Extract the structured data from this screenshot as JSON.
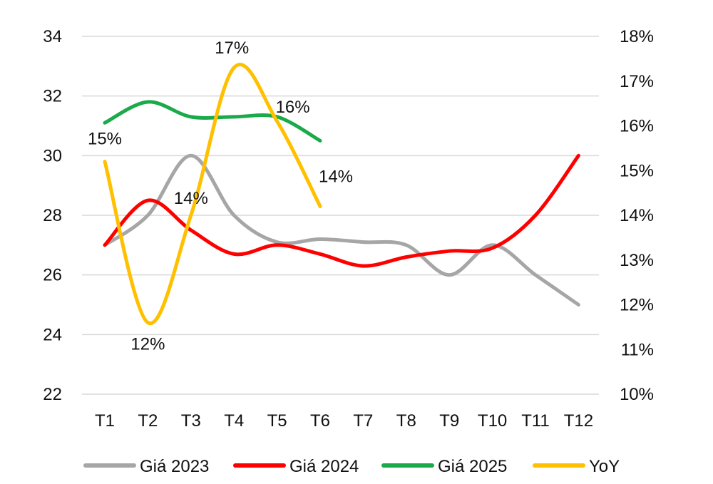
{
  "chart_data": {
    "type": "line",
    "categories": [
      "T1",
      "T2",
      "T3",
      "T4",
      "T5",
      "T6",
      "T7",
      "T8",
      "T9",
      "T10",
      "T11",
      "T12"
    ],
    "y_left": {
      "min": 22,
      "max": 34,
      "step": 2,
      "ticks": [
        "22",
        "24",
        "26",
        "28",
        "30",
        "32",
        "34"
      ]
    },
    "y_right": {
      "min": 10,
      "max": 18,
      "step": 1,
      "ticks": [
        "10%",
        "11%",
        "12%",
        "13%",
        "14%",
        "15%",
        "16%",
        "17%",
        "18%"
      ]
    },
    "grid": true,
    "legend_position": "bottom",
    "series": [
      {
        "name": "Giá 2023",
        "axis": "left",
        "color": "#a6a6a6",
        "values": [
          27.0,
          28.0,
          30.0,
          28.0,
          27.1,
          27.2,
          27.1,
          27.0,
          26.0,
          27.0,
          26.0,
          25.0
        ]
      },
      {
        "name": "Giá 2024",
        "axis": "left",
        "color": "#ff0000",
        "values": [
          27.0,
          28.5,
          27.5,
          26.7,
          27.0,
          26.7,
          26.3,
          26.6,
          26.8,
          26.9,
          28.0,
          30.0
        ]
      },
      {
        "name": "Giá 2025",
        "axis": "left",
        "color": "#1aaa4a",
        "values": [
          31.1,
          31.8,
          31.3,
          31.3,
          31.3,
          30.5,
          null,
          null,
          null,
          null,
          null,
          null
        ]
      },
      {
        "name": "YoY",
        "axis": "right",
        "color": "#ffc000",
        "values": [
          15.2,
          11.6,
          14.0,
          17.3,
          16.1,
          14.2,
          null,
          null,
          null,
          null,
          null,
          null
        ],
        "labels": [
          "15%",
          "12%",
          "14%",
          "17%",
          "16%",
          "14%"
        ]
      }
    ]
  }
}
